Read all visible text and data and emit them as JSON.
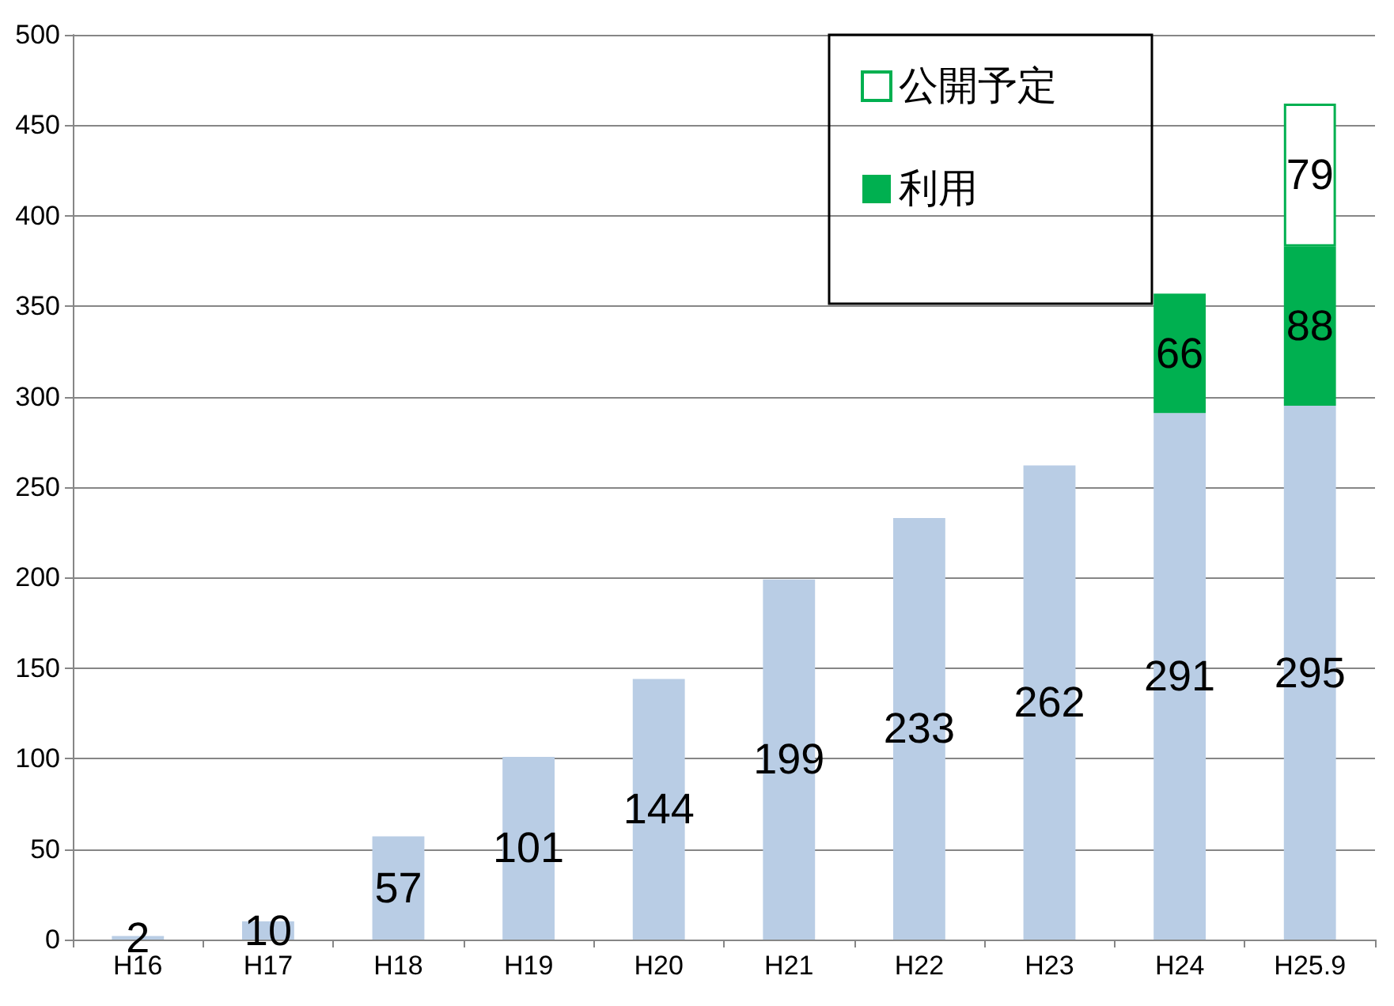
{
  "chart_data": {
    "type": "bar",
    "stacked": true,
    "categories": [
      "H16",
      "H17",
      "H18",
      "H19",
      "H20",
      "H21",
      "H22",
      "H23",
      "H24",
      "H25.9"
    ],
    "series": [
      {
        "color": "#b9cde5",
        "values": [
          2,
          10,
          57,
          101,
          144,
          199,
          233,
          262,
          291,
          295
        ]
      },
      {
        "name": "利用",
        "color": "#00b050",
        "values": [
          null,
          null,
          null,
          null,
          null,
          null,
          null,
          null,
          66,
          88
        ]
      },
      {
        "name": "公開予定",
        "color": "#ffffff",
        "values": [
          null,
          null,
          null,
          null,
          null,
          null,
          null,
          null,
          null,
          79
        ]
      }
    ],
    "ylim": [
      0,
      500
    ],
    "yticks": [
      0,
      50,
      100,
      150,
      200,
      250,
      300,
      350,
      400,
      450,
      500
    ],
    "grid": "y",
    "legend": "top right",
    "data_labels": true
  }
}
